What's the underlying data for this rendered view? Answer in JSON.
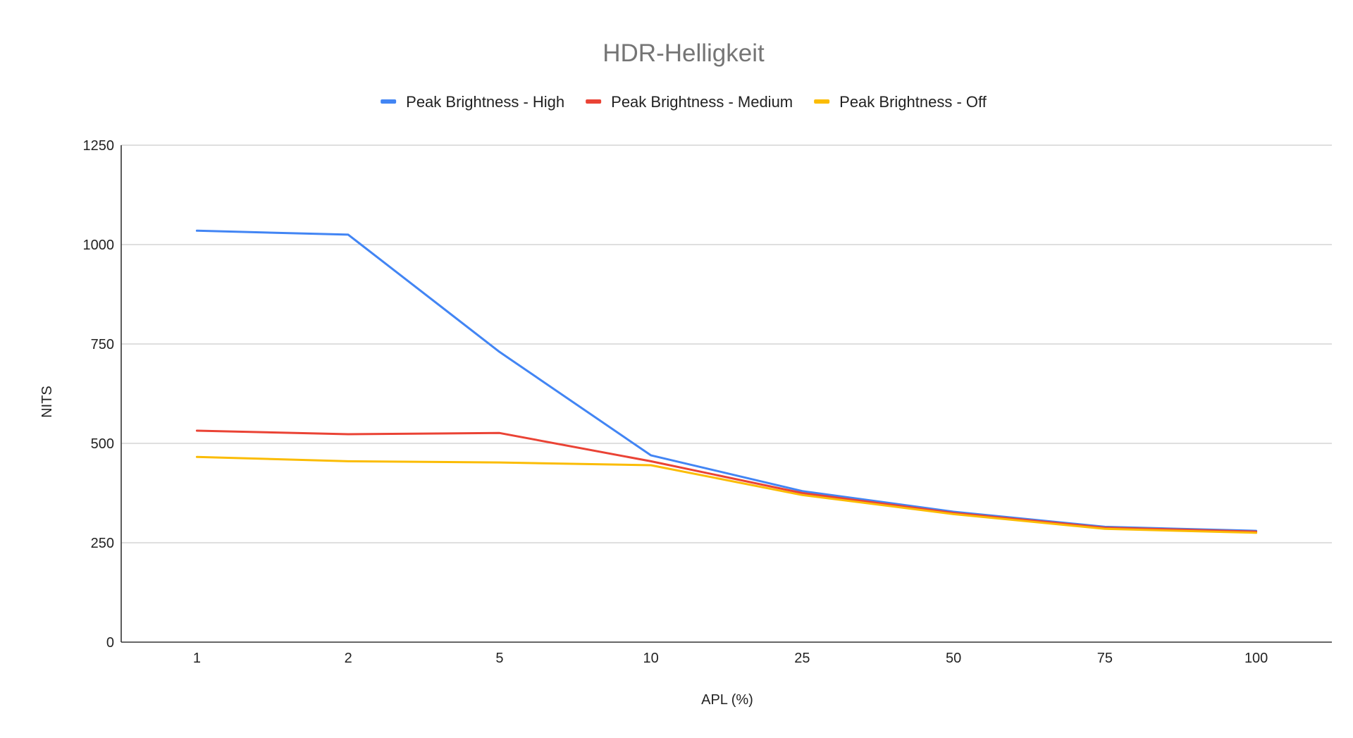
{
  "chart_data": {
    "type": "line",
    "title": "HDR-Helligkeit",
    "xlabel": "APL (%)",
    "ylabel": "NITS",
    "categories": [
      "1",
      "2",
      "5",
      "10",
      "25",
      "50",
      "75",
      "100"
    ],
    "ylim": [
      0,
      1250
    ],
    "yticks": [
      "0",
      "250",
      "500",
      "750",
      "1000",
      "1250"
    ],
    "grid": true,
    "legend_position": "top",
    "series": [
      {
        "name": "Peak Brightness - High",
        "color": "#4285f4",
        "values": [
          1035,
          1025,
          730,
          470,
          380,
          328,
          290,
          280
        ]
      },
      {
        "name": "Peak Brightness - Medium",
        "color": "#ea4335",
        "values": [
          532,
          523,
          526,
          455,
          375,
          325,
          288,
          278
        ]
      },
      {
        "name": "Peak Brightness - Off",
        "color": "#fbbc04",
        "values": [
          466,
          455,
          452,
          445,
          370,
          322,
          285,
          275
        ]
      }
    ]
  }
}
